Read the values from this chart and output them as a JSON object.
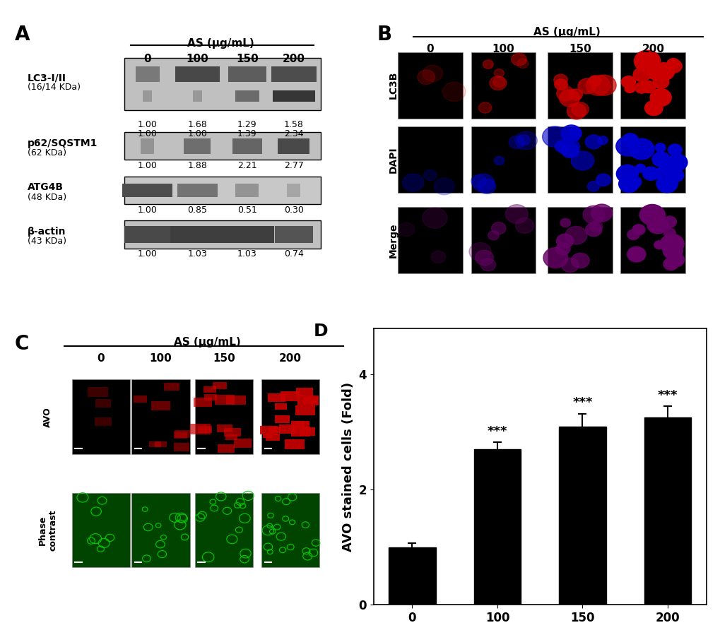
{
  "panel_D": {
    "categories": [
      "0",
      "100",
      "150",
      "200"
    ],
    "values": [
      1.0,
      2.7,
      3.1,
      3.25
    ],
    "errors": [
      0.07,
      0.12,
      0.22,
      0.2
    ],
    "bar_color": "#000000",
    "ylabel": "AVO stained cells (Fold)",
    "xlabel": "AS (μg/mL)",
    "ylim": [
      0,
      4.8
    ],
    "yticks": [
      0,
      2,
      4
    ],
    "significance": [
      "",
      "***",
      "***",
      "***"
    ],
    "sig_fontsize": 13,
    "label_fontsize": 13,
    "tick_fontsize": 12,
    "panel_label": "D",
    "panel_label_fontsize": 18,
    "bar_width": 0.55,
    "xlabel_line": true
  },
  "layout": {
    "figure_width": 10.2,
    "figure_height": 8.92,
    "bg_color": "#ffffff",
    "panel_A_label": "A",
    "panel_B_label": "B",
    "panel_C_label": "C",
    "panel_D_label": "D"
  },
  "western_blot": {
    "title": "AS (μg/mL)",
    "columns": [
      "0",
      "100",
      "150",
      "200"
    ],
    "proteins": [
      {
        "name": "LC3-I/II",
        "kda": "(16/14 KDa)",
        "values1": [
          "1.00",
          "1.68",
          "1.29",
          "1.58"
        ],
        "values2": [
          "1.00",
          "1.00",
          "1.39",
          "2.34"
        ]
      },
      {
        "name": "p62/SQSTM1",
        "kda": "(62 KDa)",
        "values1": [
          "1.00",
          "1.88",
          "2.21",
          "2.77"
        ],
        "values2": null
      },
      {
        "name": "ATG4B",
        "kda": "(48 KDa)",
        "values1": [
          "1.00",
          "0.85",
          "0.51",
          "0.30"
        ],
        "values2": null
      },
      {
        "name": "β-actin",
        "kda": "(43 KDa)",
        "values1": [
          "1.00",
          "1.03",
          "1.03",
          "0.74"
        ],
        "values2": null
      }
    ]
  },
  "immunofluorescence": {
    "title": "AS (μg/mL)",
    "columns": [
      "0",
      "100",
      "150",
      "200"
    ],
    "rows": [
      "LC3B",
      "DAPI",
      "Merge"
    ],
    "colors": {
      "LC3B": "#cc0000",
      "DAPI": "#0000cc",
      "Merge": "#660066"
    }
  },
  "AVO": {
    "title": "AS (μg/mL)",
    "columns": [
      "0",
      "100",
      "150",
      "200"
    ],
    "rows": [
      "AVO",
      "Phase contrast"
    ],
    "colors": {
      "AVO": "#cc0000",
      "Phase contrast": "#00aa00"
    }
  }
}
